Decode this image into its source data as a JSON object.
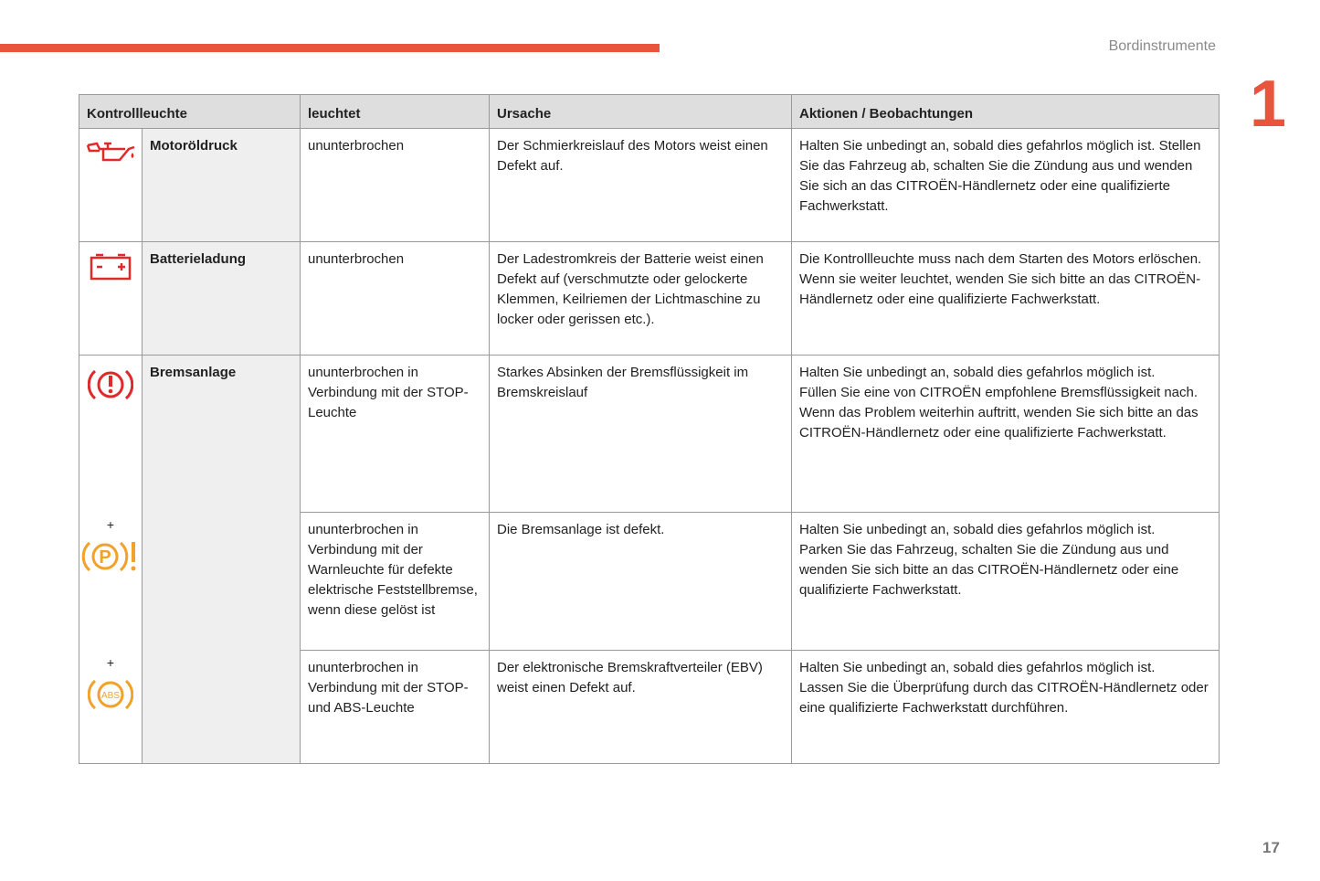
{
  "header": {
    "section": "Bordinstrumente",
    "chapter": "1",
    "page": "17",
    "accent": "#e8553c"
  },
  "table": {
    "columns": [
      "Kontrollleuchte",
      "leuchtet",
      "Ursache",
      "Aktionen / Beobachtungen"
    ],
    "rows": [
      {
        "icon": "oil-can-icon",
        "name": "Motoröldruck",
        "lights": "ununterbrochen",
        "cause": "Der Schmierkreislauf des Motors weist einen Defekt auf.",
        "action": "Halten Sie unbedingt an, sobald dies gefahrlos möglich ist. Stellen Sie das Fahrzeug ab, schalten Sie die Zündung aus und wenden Sie sich an das CITROËN-Händlernetz oder eine qualifizierte Fachwerkstatt."
      },
      {
        "icon": "battery-icon",
        "name": "Batterieladung",
        "lights": "ununterbrochen",
        "cause": "Der Ladestromkreis der Batterie weist einen Defekt auf (verschmutzte oder gelockerte Klemmen, Keilriemen der Lichtmaschine zu locker oder gerissen etc.).",
        "action": "Die Kontrollleuchte muss nach dem Starten des Motors erlöschen.\nWenn sie weiter leuchtet, wenden Sie sich bitte an das CITROËN-Händlernetz oder eine qualifizierte Fachwerkstatt."
      },
      {
        "icon": "brake-warning-icon",
        "name": "Bremsanlage",
        "lights": "ununterbrochen in Verbindung mit der STOP-Leuchte",
        "cause": "Starkes Absinken der Bremsflüssigkeit im Bremskreislauf",
        "action": "Halten Sie unbedingt an, sobald dies gefahrlos möglich ist.\nFüllen Sie eine von CITROËN empfohlene Bremsflüssigkeit nach.\nWenn das Problem weiterhin auftritt, wenden Sie sich bitte an das CITROËN-Händlernetz oder eine qualifizierte Fachwerkstatt."
      },
      {
        "icon": "parking-brake-fault-icon",
        "plus": "+",
        "lights": "ununterbrochen in Verbindung mit der Warnleuchte für defekte elektrische Feststellbremse, wenn diese gelöst ist",
        "cause": "Die Bremsanlage ist defekt.",
        "action": "Halten Sie unbedingt an, sobald dies gefahrlos möglich ist.\nParken Sie das Fahrzeug, schalten Sie die Zündung aus und wenden Sie sich bitte an das CITROËN-Händlernetz oder eine qualifizierte Fachwerkstatt."
      },
      {
        "icon": "abs-icon",
        "plus": "+",
        "lights": "ununterbrochen in Verbindung mit der STOP- und ABS-Leuchte",
        "cause": "Der elektronische Bremskraftverteiler (EBV) weist einen Defekt auf.",
        "action": "Halten Sie unbedingt an, sobald dies gefahrlos möglich ist.\nLassen Sie die Überprüfung durch das CITROËN-Händlernetz oder eine qualifizierte Fachwerkstatt durchführen."
      }
    ],
    "icon_colors": {
      "red": "#e02a2a",
      "orange": "#f2a22a"
    },
    "abs_text": "ABS"
  }
}
